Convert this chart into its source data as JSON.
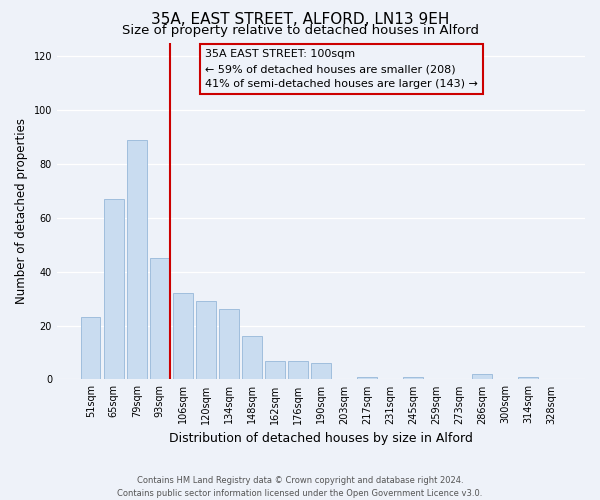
{
  "title": "35A, EAST STREET, ALFORD, LN13 9EH",
  "subtitle": "Size of property relative to detached houses in Alford",
  "xlabel": "Distribution of detached houses by size in Alford",
  "ylabel": "Number of detached properties",
  "bar_labels": [
    "51sqm",
    "65sqm",
    "79sqm",
    "93sqm",
    "106sqm",
    "120sqm",
    "134sqm",
    "148sqm",
    "162sqm",
    "176sqm",
    "190sqm",
    "203sqm",
    "217sqm",
    "231sqm",
    "245sqm",
    "259sqm",
    "273sqm",
    "286sqm",
    "300sqm",
    "314sqm",
    "328sqm"
  ],
  "bar_values": [
    23,
    67,
    89,
    45,
    32,
    29,
    26,
    16,
    7,
    7,
    6,
    0,
    1,
    0,
    1,
    0,
    0,
    2,
    0,
    1,
    0
  ],
  "bar_color": "#c9dcf0",
  "bar_edge_color": "#a0bedd",
  "vline_color": "#cc0000",
  "annotation_title": "35A EAST STREET: 100sqm",
  "annotation_line1": "← 59% of detached houses are smaller (208)",
  "annotation_line2": "41% of semi-detached houses are larger (143) →",
  "annotation_box_edge": "#cc0000",
  "ylim": [
    0,
    125
  ],
  "yticks": [
    0,
    20,
    40,
    60,
    80,
    100,
    120
  ],
  "footer1": "Contains HM Land Registry data © Crown copyright and database right 2024.",
  "footer2": "Contains public sector information licensed under the Open Government Licence v3.0.",
  "background_color": "#eef2f9",
  "grid_color": "#ffffff",
  "title_fontsize": 11,
  "subtitle_fontsize": 9.5,
  "tick_fontsize": 7,
  "ylabel_fontsize": 8.5,
  "xlabel_fontsize": 9
}
